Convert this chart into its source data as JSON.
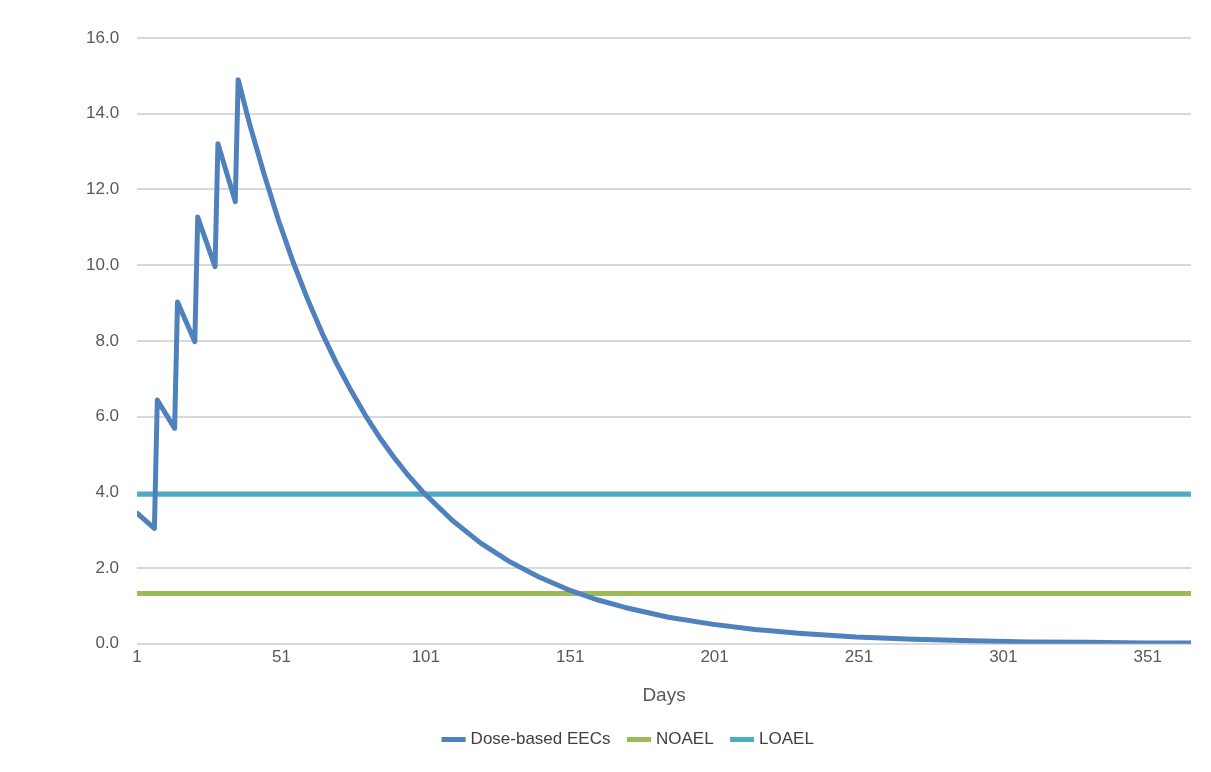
{
  "chart_data": {
    "type": "line",
    "xlabel": "Days",
    "xlim": [
      1,
      366
    ],
    "xticks": [
      1,
      51,
      101,
      151,
      201,
      251,
      301,
      351
    ],
    "ylim": [
      0,
      16
    ],
    "yticks": [
      {
        "value": 0,
        "label": "0.0"
      },
      {
        "value": 2,
        "label": "2.0"
      },
      {
        "value": 4,
        "label": "4.0"
      },
      {
        "value": 6,
        "label": "6.0"
      },
      {
        "value": 8,
        "label": "8.0"
      },
      {
        "value": 10,
        "label": "10.0"
      },
      {
        "value": 12,
        "label": "12.0"
      },
      {
        "value": 14,
        "label": "14.0"
      },
      {
        "value": 16,
        "label": "16.0"
      }
    ],
    "grid": "y",
    "legend": "bottom",
    "marker": "none",
    "line_style": "solid",
    "series": [
      {
        "name": "Dose-based EECs",
        "color": "#4f81bd",
        "x": [
          1,
          7,
          8,
          14,
          15,
          21,
          22,
          28,
          29,
          35,
          36,
          40,
          45,
          50,
          55,
          60,
          65,
          70,
          75,
          80,
          85,
          90,
          95,
          100,
          110,
          120,
          130,
          140,
          150,
          160,
          170,
          185,
          200,
          215,
          230,
          250,
          270,
          290,
          310,
          330,
          350,
          366
        ],
        "values": [
          3.45,
          3.05,
          6.44,
          5.69,
          9.03,
          7.98,
          11.27,
          9.96,
          13.21,
          11.68,
          14.9,
          13.72,
          12.4,
          11.18,
          10.09,
          9.11,
          8.22,
          7.42,
          6.7,
          6.04,
          5.45,
          4.92,
          4.44,
          4.01,
          3.27,
          2.66,
          2.17,
          1.77,
          1.44,
          1.17,
          0.96,
          0.7,
          0.52,
          0.38,
          0.28,
          0.18,
          0.12,
          0.08,
          0.05,
          0.04,
          0.02,
          0.02
        ]
      },
      {
        "name": "NOAEL",
        "color": "#9bbb59",
        "x": [
          1,
          366
        ],
        "values": [
          1.33,
          1.33
        ]
      },
      {
        "name": "LOAEL",
        "color": "#4bacc6",
        "x": [
          1,
          366
        ],
        "values": [
          3.95,
          3.95
        ]
      }
    ]
  }
}
